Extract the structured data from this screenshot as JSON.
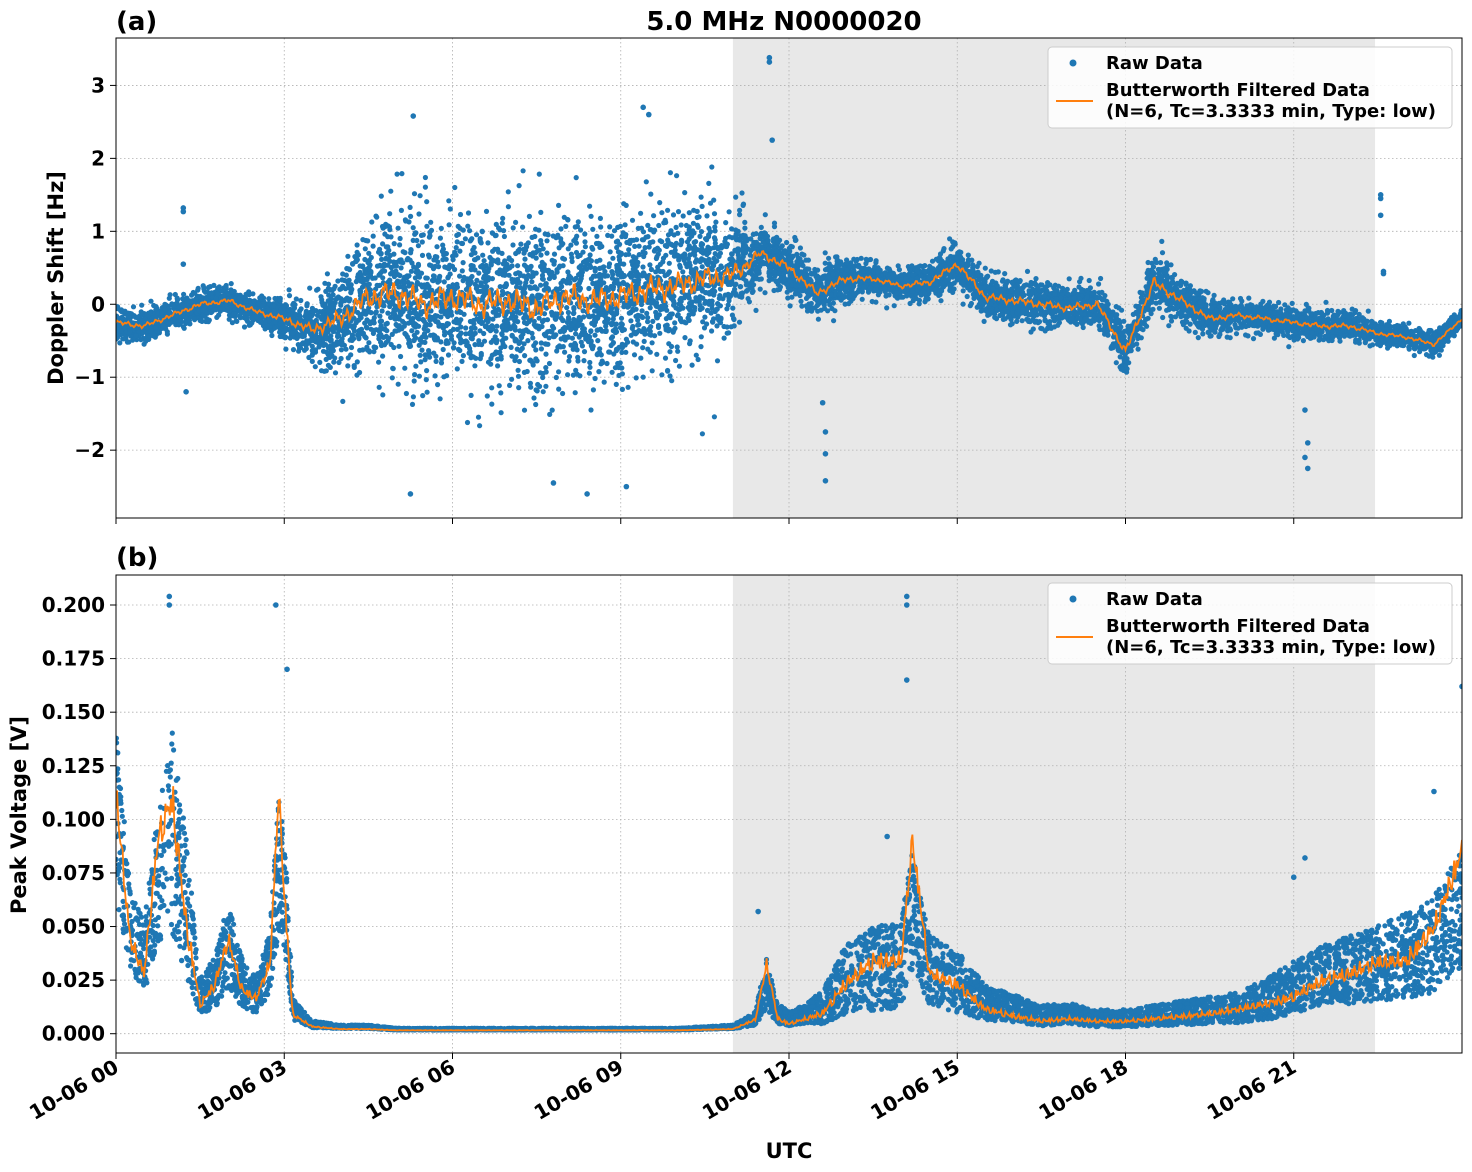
{
  "figure": {
    "title": "5.0 MHz N0000020",
    "xlabel": "UTC",
    "shade_color": "#e8e8e8",
    "raw_color": "#1f77b4",
    "filtered_color": "#ff7f0e"
  },
  "legend": {
    "raw_label": "Raw Data",
    "filtered_label_line1": "Butterworth Filtered Data",
    "filtered_label_line2": "(N=6, Tc=3.3333 min, Type: low)"
  },
  "chart_data": [
    {
      "panel_label": "(a)",
      "type": "scatter",
      "ylabel": "Doppler Shift [Hz]",
      "xlim": [
        0,
        24
      ],
      "ylim": [
        -2.93,
        3.65
      ],
      "x_unit": "hours UTC since 2024-10-06 00:00",
      "shaded_region": [
        11.0,
        22.45
      ],
      "x_ticks": [
        0,
        3,
        6,
        9,
        12,
        15,
        18,
        21
      ],
      "x_tick_labels": [
        "10-06 00",
        "10-06 03",
        "10-06 06",
        "10-06 09",
        "10-06 12",
        "10-06 15",
        "10-06 18",
        "10-06 21"
      ],
      "y_ticks": [
        -2,
        -1,
        0,
        1,
        2,
        3
      ],
      "y_tick_labels": [
        "−2",
        "−1",
        "0",
        "1",
        "2",
        "3"
      ],
      "grid": true,
      "legend_position": "top-right",
      "series": [
        {
          "name": "Raw Data",
          "kind": "scatter",
          "x": [
            0.0,
            0.5,
            1.0,
            1.5,
            2.0,
            2.5,
            3.0,
            3.5,
            4.0,
            4.5,
            5.0,
            5.5,
            6.0,
            6.5,
            7.0,
            7.5,
            8.0,
            8.5,
            9.0,
            9.5,
            10.0,
            10.5,
            11.0,
            11.5,
            12.0,
            12.5,
            13.0,
            13.5,
            14.0,
            14.5,
            15.0,
            15.5,
            16.0,
            16.5,
            17.0,
            17.5,
            18.0,
            18.5,
            19.0,
            19.5,
            20.0,
            20.5,
            21.0,
            21.5,
            22.0,
            22.5,
            23.0,
            23.5,
            24.0
          ],
          "y_center": [
            -0.25,
            -0.3,
            -0.15,
            0.0,
            0.05,
            -0.1,
            -0.2,
            -0.35,
            -0.2,
            0.1,
            0.15,
            0.0,
            0.1,
            0.0,
            0.05,
            -0.05,
            0.1,
            0.05,
            0.1,
            0.2,
            0.25,
            0.35,
            0.4,
            0.7,
            0.5,
            0.15,
            0.35,
            0.35,
            0.25,
            0.3,
            0.55,
            0.1,
            0.05,
            0.0,
            -0.05,
            0.0,
            -0.65,
            0.3,
            0.05,
            -0.2,
            -0.15,
            -0.2,
            -0.25,
            -0.3,
            -0.3,
            -0.4,
            -0.45,
            -0.55,
            -0.2
          ],
          "y_spread": [
            0.2,
            0.2,
            0.2,
            0.2,
            0.2,
            0.2,
            0.25,
            0.4,
            0.7,
            1.0,
            1.1,
            1.1,
            1.1,
            1.1,
            1.1,
            1.1,
            1.1,
            1.05,
            1.05,
            1.05,
            1.0,
            0.95,
            0.8,
            0.35,
            0.35,
            0.3,
            0.3,
            0.2,
            0.2,
            0.25,
            0.3,
            0.3,
            0.3,
            0.3,
            0.3,
            0.3,
            0.35,
            0.4,
            0.3,
            0.25,
            0.2,
            0.2,
            0.2,
            0.2,
            0.2,
            0.15,
            0.15,
            0.15,
            0.1
          ],
          "outliers": [
            [
              1.2,
              1.32
            ],
            [
              1.2,
              1.27
            ],
            [
              1.25,
              -1.2
            ],
            [
              1.2,
              0.55
            ],
            [
              5.3,
              2.58
            ],
            [
              5.25,
              -2.6
            ],
            [
              7.8,
              -2.45
            ],
            [
              8.4,
              -2.6
            ],
            [
              9.1,
              -2.5
            ],
            [
              9.4,
              2.7
            ],
            [
              9.5,
              2.6
            ],
            [
              11.65,
              3.38
            ],
            [
              11.65,
              3.32
            ],
            [
              11.7,
              2.25
            ],
            [
              12.6,
              -1.35
            ],
            [
              12.65,
              -1.75
            ],
            [
              12.65,
              -2.05
            ],
            [
              12.65,
              -2.42
            ],
            [
              21.2,
              -1.45
            ],
            [
              21.25,
              -1.9
            ],
            [
              21.2,
              -2.1
            ],
            [
              21.25,
              -2.25
            ],
            [
              22.55,
              1.5
            ],
            [
              22.55,
              1.45
            ],
            [
              22.55,
              1.22
            ],
            [
              22.6,
              0.45
            ],
            [
              22.6,
              0.42
            ]
          ]
        },
        {
          "name": "Butterworth Filtered Data (N=6, Tc=3.3333 min, Type: low)",
          "kind": "line",
          "x": [
            0.0,
            0.5,
            1.0,
            1.5,
            2.0,
            2.5,
            3.0,
            3.5,
            4.0,
            4.5,
            5.0,
            5.5,
            6.0,
            6.5,
            7.0,
            7.5,
            8.0,
            8.5,
            9.0,
            9.5,
            10.0,
            10.5,
            11.0,
            11.5,
            12.0,
            12.5,
            13.0,
            13.5,
            14.0,
            14.5,
            15.0,
            15.5,
            16.0,
            16.5,
            17.0,
            17.5,
            18.0,
            18.5,
            19.0,
            19.5,
            20.0,
            20.5,
            21.0,
            21.5,
            22.0,
            22.5,
            23.0,
            23.5,
            24.0
          ],
          "y": [
            -0.25,
            -0.3,
            -0.15,
            0.0,
            0.05,
            -0.1,
            -0.2,
            -0.35,
            -0.2,
            0.1,
            0.15,
            0.0,
            0.1,
            0.0,
            0.05,
            -0.05,
            0.1,
            0.05,
            0.1,
            0.2,
            0.25,
            0.35,
            0.4,
            0.7,
            0.5,
            0.15,
            0.35,
            0.35,
            0.25,
            0.3,
            0.55,
            0.1,
            0.05,
            0.0,
            -0.05,
            0.0,
            -0.65,
            0.3,
            0.05,
            -0.2,
            -0.15,
            -0.2,
            -0.25,
            -0.3,
            -0.3,
            -0.4,
            -0.45,
            -0.55,
            -0.2
          ]
        }
      ]
    },
    {
      "panel_label": "(b)",
      "type": "scatter",
      "ylabel": "Peak Voltage [V]",
      "xlim": [
        0,
        24
      ],
      "ylim": [
        -0.009,
        0.214
      ],
      "x_unit": "hours UTC since 2024-10-06 00:00",
      "shaded_region": [
        11.0,
        22.45
      ],
      "x_ticks": [
        0,
        3,
        6,
        9,
        12,
        15,
        18,
        21
      ],
      "x_tick_labels": [
        "10-06 00",
        "10-06 03",
        "10-06 06",
        "10-06 09",
        "10-06 12",
        "10-06 15",
        "10-06 18",
        "10-06 21"
      ],
      "y_ticks": [
        0.0,
        0.025,
        0.05,
        0.075,
        0.1,
        0.125,
        0.15,
        0.175,
        0.2
      ],
      "y_tick_labels": [
        "0.000",
        "0.025",
        "0.050",
        "0.075",
        "0.100",
        "0.125",
        "0.150",
        "0.175",
        "0.200"
      ],
      "grid": true,
      "legend_position": "top-right",
      "series": [
        {
          "name": "Raw Data",
          "kind": "scatter",
          "x": [
            0.0,
            0.25,
            0.5,
            0.75,
            1.0,
            1.25,
            1.5,
            1.75,
            2.0,
            2.25,
            2.5,
            2.75,
            2.9,
            3.0,
            3.15,
            3.5,
            4.0,
            4.5,
            5.0,
            6.0,
            7.0,
            8.0,
            9.0,
            10.0,
            11.0,
            11.4,
            11.6,
            11.8,
            12.0,
            12.3,
            12.6,
            13.0,
            13.5,
            14.0,
            14.2,
            14.5,
            15.0,
            15.5,
            16.0,
            16.5,
            17.0,
            17.5,
            18.0,
            18.5,
            19.0,
            19.5,
            20.0,
            20.5,
            21.0,
            21.5,
            22.0,
            22.5,
            23.0,
            23.5,
            24.0
          ],
          "y_center": [
            0.09,
            0.045,
            0.03,
            0.065,
            0.08,
            0.05,
            0.015,
            0.02,
            0.035,
            0.02,
            0.015,
            0.03,
            0.07,
            0.06,
            0.01,
            0.004,
            0.003,
            0.003,
            0.002,
            0.002,
            0.002,
            0.002,
            0.002,
            0.002,
            0.003,
            0.006,
            0.02,
            0.008,
            0.006,
            0.008,
            0.01,
            0.02,
            0.025,
            0.025,
            0.05,
            0.025,
            0.02,
            0.012,
            0.01,
            0.007,
            0.008,
            0.006,
            0.006,
            0.007,
            0.008,
            0.009,
            0.01,
            0.013,
            0.018,
            0.022,
            0.025,
            0.028,
            0.03,
            0.035,
            0.05
          ],
          "y_spread": [
            0.05,
            0.025,
            0.02,
            0.04,
            0.06,
            0.04,
            0.01,
            0.015,
            0.025,
            0.015,
            0.01,
            0.02,
            0.04,
            0.035,
            0.006,
            0.002,
            0.001,
            0.001,
            0.0005,
            0.0005,
            0.0005,
            0.0005,
            0.0005,
            0.0005,
            0.001,
            0.004,
            0.015,
            0.006,
            0.004,
            0.006,
            0.01,
            0.02,
            0.025,
            0.025,
            0.035,
            0.02,
            0.018,
            0.01,
            0.008,
            0.006,
            0.006,
            0.005,
            0.005,
            0.006,
            0.007,
            0.008,
            0.009,
            0.012,
            0.015,
            0.018,
            0.02,
            0.022,
            0.025,
            0.028,
            0.035
          ],
          "outliers": [
            [
              0.95,
              0.204
            ],
            [
              0.95,
              0.2
            ],
            [
              2.85,
              0.2
            ],
            [
              3.05,
              0.17
            ],
            [
              14.1,
              0.204
            ],
            [
              14.1,
              0.2
            ],
            [
              14.1,
              0.165
            ],
            [
              13.75,
              0.092
            ],
            [
              11.45,
              0.057
            ],
            [
              21.2,
              0.082
            ],
            [
              21.0,
              0.073
            ],
            [
              23.5,
              0.113
            ],
            [
              24.0,
              0.162
            ]
          ]
        },
        {
          "name": "Butterworth Filtered Data (N=6, Tc=3.3333 min, Type: low)",
          "kind": "line",
          "x": [
            0.0,
            0.25,
            0.5,
            0.75,
            1.0,
            1.25,
            1.5,
            1.75,
            2.0,
            2.25,
            2.5,
            2.75,
            2.9,
            3.0,
            3.15,
            3.5,
            4.0,
            4.5,
            5.0,
            6.0,
            7.0,
            8.0,
            9.0,
            10.0,
            11.0,
            11.4,
            11.6,
            11.8,
            12.0,
            12.3,
            12.6,
            13.0,
            13.5,
            14.0,
            14.2,
            14.5,
            15.0,
            15.5,
            16.0,
            16.5,
            17.0,
            17.5,
            18.0,
            18.5,
            19.0,
            19.5,
            20.0,
            20.5,
            21.0,
            21.5,
            22.0,
            22.5,
            23.0,
            23.5,
            24.0
          ],
          "y": [
            0.105,
            0.04,
            0.025,
            0.085,
            0.1,
            0.045,
            0.012,
            0.02,
            0.04,
            0.018,
            0.015,
            0.03,
            0.107,
            0.06,
            0.008,
            0.003,
            0.002,
            0.002,
            0.0015,
            0.0015,
            0.0015,
            0.0015,
            0.0015,
            0.0015,
            0.002,
            0.006,
            0.03,
            0.006,
            0.004,
            0.006,
            0.008,
            0.02,
            0.03,
            0.03,
            0.085,
            0.025,
            0.02,
            0.01,
            0.007,
            0.005,
            0.006,
            0.005,
            0.005,
            0.006,
            0.007,
            0.008,
            0.01,
            0.012,
            0.015,
            0.022,
            0.025,
            0.03,
            0.03,
            0.045,
            0.08
          ]
        }
      ]
    }
  ]
}
